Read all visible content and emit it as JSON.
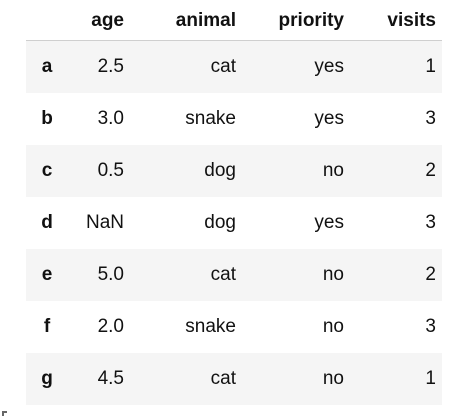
{
  "table": {
    "index_header": "",
    "columns": [
      "age",
      "animal",
      "priority",
      "visits"
    ],
    "rows": [
      {
        "index": "a",
        "age": "2.5",
        "animal": "cat",
        "priority": "yes",
        "visits": "1"
      },
      {
        "index": "b",
        "age": "3.0",
        "animal": "snake",
        "priority": "yes",
        "visits": "3"
      },
      {
        "index": "c",
        "age": "0.5",
        "animal": "dog",
        "priority": "no",
        "visits": "2"
      },
      {
        "index": "d",
        "age": "NaN",
        "animal": "dog",
        "priority": "yes",
        "visits": "3"
      },
      {
        "index": "e",
        "age": "5.0",
        "animal": "cat",
        "priority": "no",
        "visits": "2"
      },
      {
        "index": "f",
        "age": "2.0",
        "animal": "snake",
        "priority": "no",
        "visits": "3"
      },
      {
        "index": "g",
        "age": "4.5",
        "animal": "cat",
        "priority": "no",
        "visits": "1"
      }
    ]
  },
  "colors": {
    "stripe": "#f5f5f5",
    "background": "#ffffff",
    "text": "#111111",
    "header_rule": "#cfcfcf"
  }
}
